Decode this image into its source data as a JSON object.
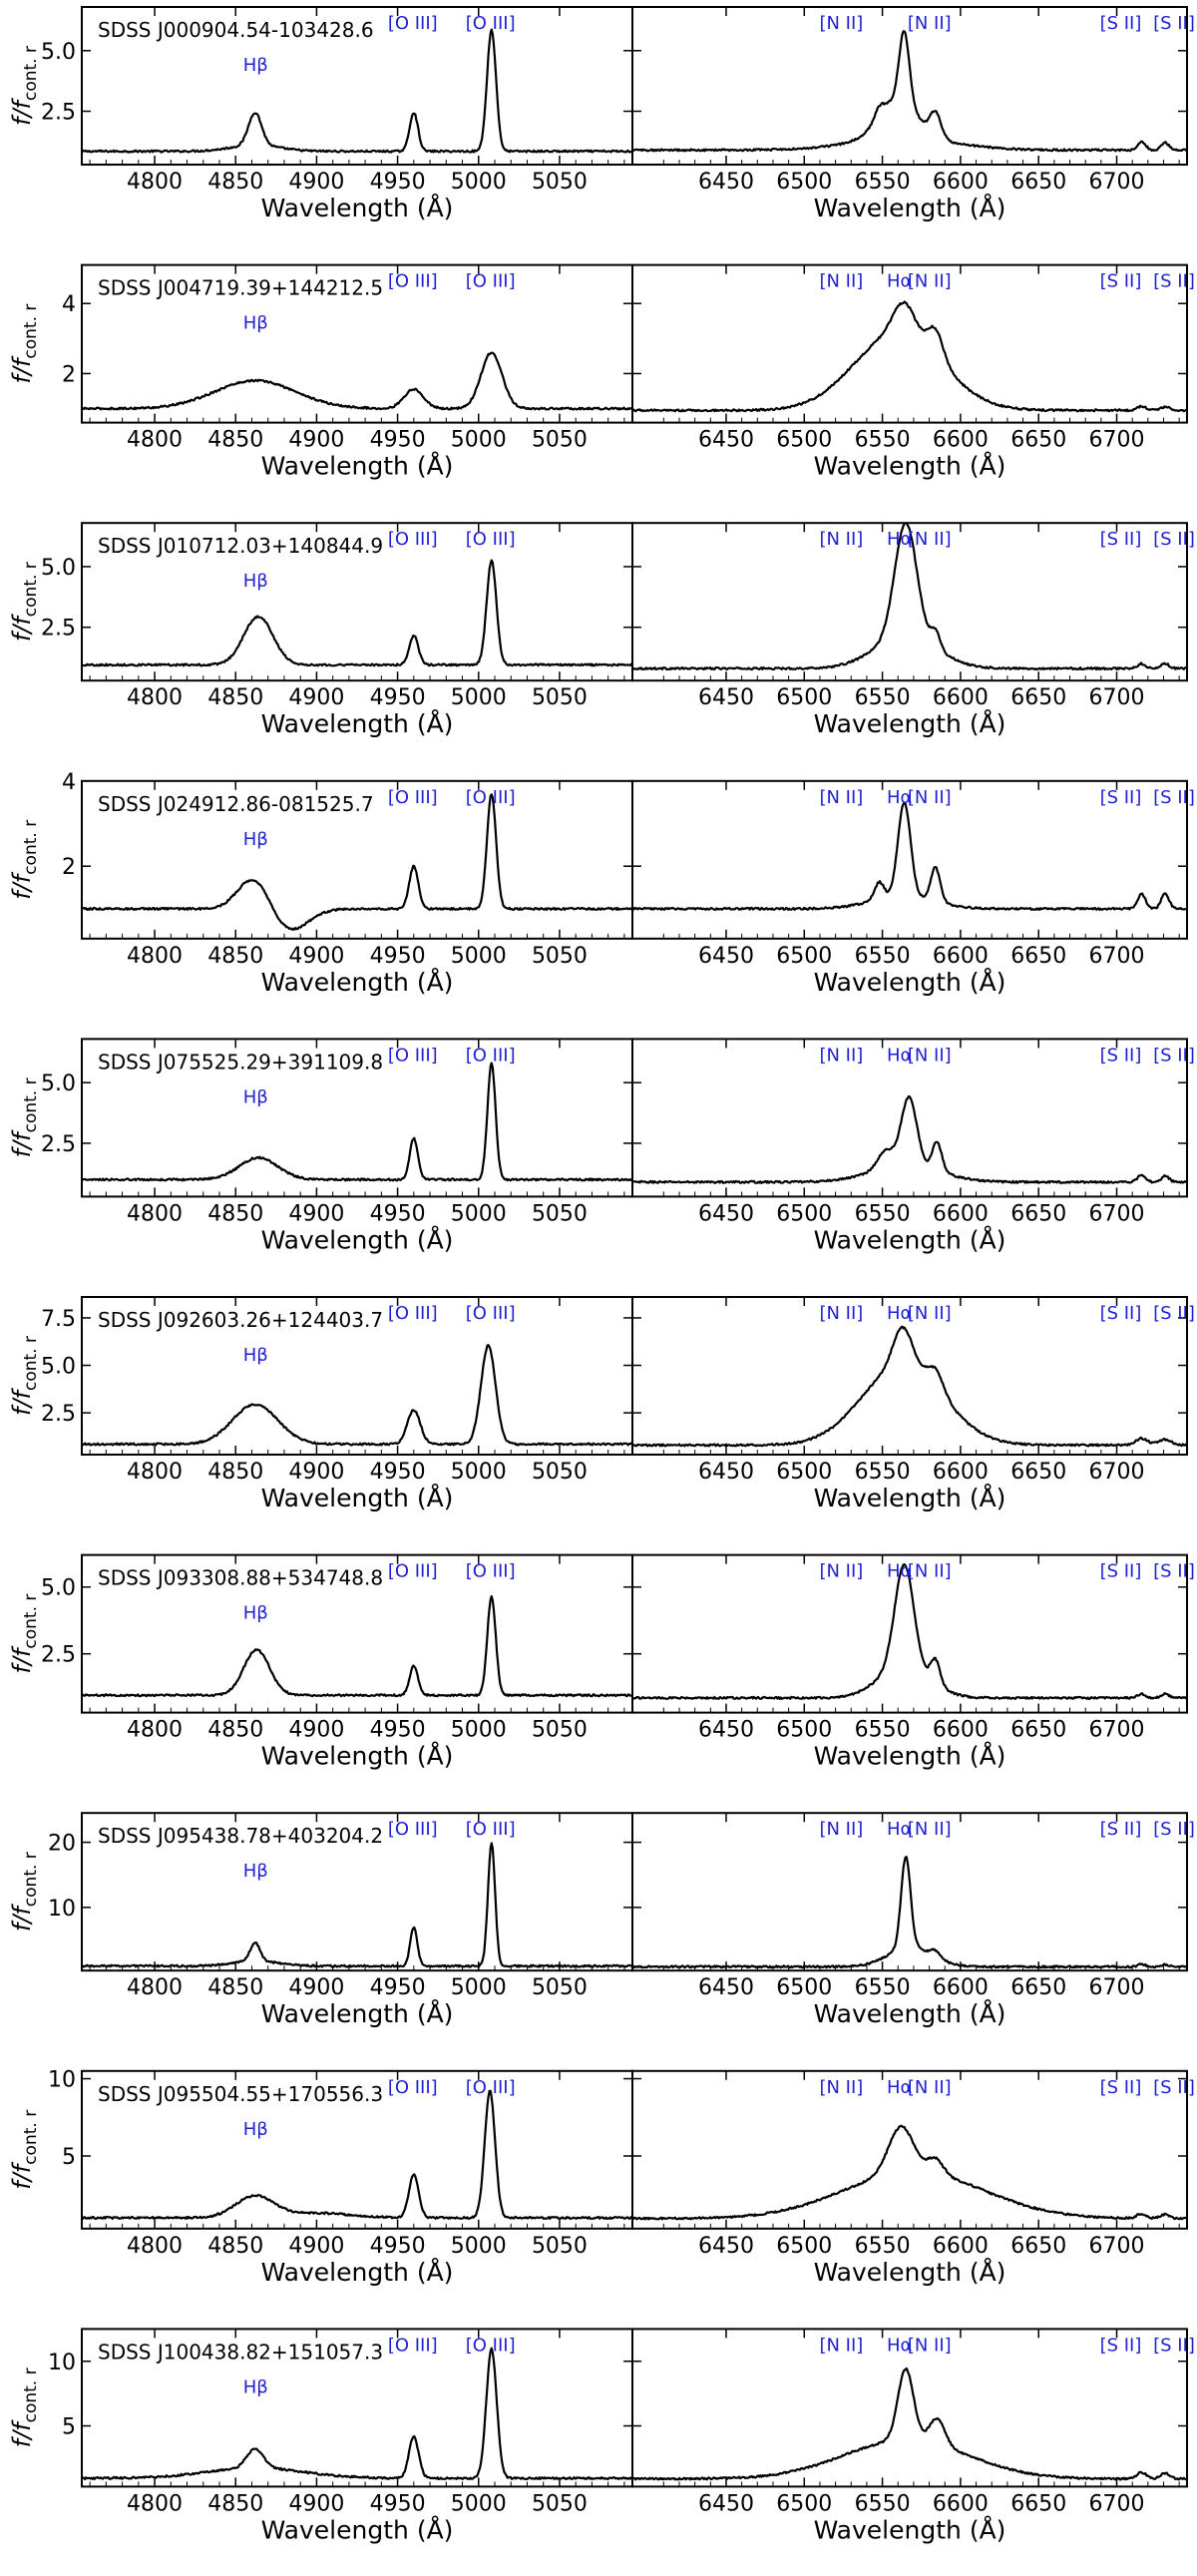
{
  "figure": {
    "x_label": "Wavelength (Å)",
    "y_label_main": "f/f",
    "y_label_sub": "cont. r",
    "line_color": "#1f1fd6",
    "spectrum_color": "#000000"
  },
  "chart_data": [
    {
      "type": "line",
      "title": "SDSS J000904.54-103428.6",
      "ylim": [
        0.3,
        6.8
      ],
      "yticks": [
        "2.5",
        "5.0"
      ],
      "ytick_values": [
        2.5,
        5.0
      ],
      "line_labels": {
        "Hbeta": "Hβ",
        "OIII_a": "[O III]",
        "OIII_b": "[O III]",
        "NII_a": "[N II]",
        "Halpha": "",
        "NII_b": "[N II]",
        "SII_a": "[S II]",
        "SII_b": "[S II]"
      },
      "left": {
        "xlim": [
          4755,
          5095
        ],
        "xticks": [
          4800,
          4850,
          4900,
          4950,
          5000,
          5050
        ],
        "baseline": 0.85,
        "features": [
          {
            "center": 4862,
            "sigma": 15,
            "amp": 0.25
          },
          {
            "center": 4862,
            "sigma": 4,
            "amp": 1.35
          },
          {
            "center": 4960,
            "sigma": 2.6,
            "amp": 1.6
          },
          {
            "center": 5008,
            "sigma": 2.8,
            "amp": 5.0
          }
        ]
      },
      "right": {
        "xlim": [
          6390,
          6745
        ],
        "xticks": [
          6450,
          6500,
          6550,
          6600,
          6650,
          6700
        ],
        "baseline": 0.9,
        "features": [
          {
            "center": 6563,
            "sigma": 32,
            "amp": 0.5
          },
          {
            "center": 6560,
            "sigma": 12,
            "amp": 1.6
          },
          {
            "center": 6564,
            "sigma": 3.2,
            "amp": 2.9
          },
          {
            "center": 6584,
            "sigma": 3.5,
            "amp": 1.0
          },
          {
            "center": 6548,
            "sigma": 3,
            "amp": 0.4
          },
          {
            "center": 6716,
            "sigma": 2.5,
            "amp": 0.35
          },
          {
            "center": 6731,
            "sigma": 2.5,
            "amp": 0.3
          }
        ]
      }
    },
    {
      "type": "line",
      "title": "SDSS J004719.39+144212.5",
      "ylim": [
        0.6,
        5.1
      ],
      "yticks": [
        "2",
        "4"
      ],
      "ytick_values": [
        2,
        4
      ],
      "line_labels": {
        "Hbeta": "Hβ",
        "OIII_a": "[O III]",
        "OIII_b": "[O III]",
        "NII_a": "[N II]",
        "Halpha": "Hα",
        "NII_b": "[N II]",
        "SII_a": "[S II]",
        "SII_b": "[S II]"
      },
      "left": {
        "xlim": [
          4755,
          5095
        ],
        "xticks": [
          4800,
          4850,
          4900,
          4950,
          5000,
          5050
        ],
        "baseline": 1.0,
        "features": [
          {
            "center": 4862,
            "sigma": 25,
            "amp": 0.8
          },
          {
            "center": 4960,
            "sigma": 6,
            "amp": 0.55
          },
          {
            "center": 5008,
            "sigma": 6.5,
            "amp": 1.6
          }
        ]
      },
      "right": {
        "xlim": [
          6390,
          6745
        ],
        "xticks": [
          6450,
          6500,
          6550,
          6600,
          6650,
          6700
        ],
        "baseline": 0.95,
        "features": [
          {
            "center": 6560,
            "sigma": 28,
            "amp": 2.2
          },
          {
            "center": 6564,
            "sigma": 7,
            "amp": 0.9
          },
          {
            "center": 6584,
            "sigma": 5,
            "amp": 0.8
          },
          {
            "center": 6716,
            "sigma": 3,
            "amp": 0.12
          },
          {
            "center": 6731,
            "sigma": 3,
            "amp": 0.1
          }
        ]
      }
    },
    {
      "type": "line",
      "title": "SDSS J010712.03+140844.9",
      "ylim": [
        0.3,
        6.8
      ],
      "yticks": [
        "2.5",
        "5.0"
      ],
      "ytick_values": [
        2.5,
        5.0
      ],
      "line_labels": {
        "Hbeta": "Hβ",
        "OIII_a": "[O III]",
        "OIII_b": "[O III]",
        "NII_a": "[N II]",
        "Halpha": "Hα",
        "NII_b": "[N II]",
        "SII_a": "[S II]",
        "SII_b": "[S II]"
      },
      "left": {
        "xlim": [
          4755,
          5095
        ],
        "xticks": [
          4800,
          4850,
          4900,
          4950,
          5000,
          5050
        ],
        "baseline": 0.95,
        "features": [
          {
            "center": 4864,
            "sigma": 9,
            "amp": 2.0
          },
          {
            "center": 4960,
            "sigma": 2.8,
            "amp": 1.2
          },
          {
            "center": 5008,
            "sigma": 3,
            "amp": 4.3
          }
        ]
      },
      "right": {
        "xlim": [
          6390,
          6745
        ],
        "xticks": [
          6450,
          6500,
          6550,
          6600,
          6650,
          6700
        ],
        "baseline": 0.8,
        "features": [
          {
            "center": 6565,
            "sigma": 20,
            "amp": 1.3
          },
          {
            "center": 6565,
            "sigma": 7,
            "amp": 4.7
          },
          {
            "center": 6584,
            "sigma": 3,
            "amp": 0.7
          },
          {
            "center": 6716,
            "sigma": 2.5,
            "amp": 0.2
          },
          {
            "center": 6731,
            "sigma": 2.5,
            "amp": 0.2
          }
        ]
      }
    },
    {
      "type": "line",
      "title": "SDSS J024912.86-081525.7",
      "ylim": [
        0.3,
        4.0
      ],
      "yticks": [
        "2",
        "4"
      ],
      "ytick_values": [
        2,
        4
      ],
      "line_labels": {
        "Hbeta": "Hβ",
        "OIII_a": "[O III]",
        "OIII_b": "[O III]",
        "NII_a": "[N II]",
        "Halpha": "Hα",
        "NII_b": "[N II]",
        "SII_a": "[S II]",
        "SII_b": "[S II]"
      },
      "left": {
        "xlim": [
          4755,
          5095
        ],
        "xticks": [
          4800,
          4850,
          4900,
          4950,
          5000,
          5050
        ],
        "baseline": 1.0,
        "features": [
          {
            "center": 4862,
            "sigma": 10,
            "amp": 0.8
          },
          {
            "center": 4882,
            "sigma": 12,
            "amp": -0.55
          },
          {
            "center": 4960,
            "sigma": 2.8,
            "amp": 1.0
          },
          {
            "center": 5008,
            "sigma": 2.8,
            "amp": 2.7
          }
        ]
      },
      "right": {
        "xlim": [
          6390,
          6745
        ],
        "xticks": [
          6450,
          6500,
          6550,
          6600,
          6650,
          6700
        ],
        "baseline": 1.0,
        "features": [
          {
            "center": 6563,
            "sigma": 20,
            "amp": 0.3
          },
          {
            "center": 6564,
            "sigma": 4,
            "amp": 2.2
          },
          {
            "center": 6548,
            "sigma": 3,
            "amp": 0.4
          },
          {
            "center": 6584,
            "sigma": 3,
            "amp": 0.8
          },
          {
            "center": 6716,
            "sigma": 2.5,
            "amp": 0.35
          },
          {
            "center": 6731,
            "sigma": 2.5,
            "amp": 0.35
          }
        ]
      }
    },
    {
      "type": "line",
      "title": "SDSS J075525.29+391109.8",
      "ylim": [
        0.3,
        6.8
      ],
      "yticks": [
        "2.5",
        "5.0"
      ],
      "ytick_values": [
        2.5,
        5.0
      ],
      "line_labels": {
        "Hbeta": "Hβ",
        "OIII_a": "[O III]",
        "OIII_b": "[O III]",
        "NII_a": "[N II]",
        "Halpha": "Hα",
        "NII_b": "[N II]",
        "SII_a": "[S II]",
        "SII_b": "[S II]"
      },
      "left": {
        "xlim": [
          4755,
          5095
        ],
        "xticks": [
          4800,
          4850,
          4900,
          4950,
          5000,
          5050
        ],
        "baseline": 1.0,
        "features": [
          {
            "center": 4864,
            "sigma": 12,
            "amp": 0.9
          },
          {
            "center": 4960,
            "sigma": 2.5,
            "amp": 1.7
          },
          {
            "center": 5008,
            "sigma": 2.5,
            "amp": 4.8
          }
        ]
      },
      "right": {
        "xlim": [
          6390,
          6745
        ],
        "xticks": [
          6450,
          6500,
          6550,
          6600,
          6650,
          6700
        ],
        "baseline": 0.9,
        "features": [
          {
            "center": 6565,
            "sigma": 22,
            "amp": 0.7
          },
          {
            "center": 6552,
            "sigma": 5,
            "amp": 0.7
          },
          {
            "center": 6567,
            "sigma": 5,
            "amp": 2.8
          },
          {
            "center": 6585,
            "sigma": 3,
            "amp": 1.2
          },
          {
            "center": 6716,
            "sigma": 2.5,
            "amp": 0.3
          },
          {
            "center": 6731,
            "sigma": 2.5,
            "amp": 0.25
          }
        ]
      }
    },
    {
      "type": "line",
      "title": "SDSS J092603.26+124403.7",
      "ylim": [
        0.3,
        8.6
      ],
      "yticks": [
        "2.5",
        "5.0",
        "7.5"
      ],
      "ytick_values": [
        2.5,
        5.0,
        7.5
      ],
      "line_labels": {
        "Hbeta": "Hβ",
        "OIII_a": "[O III]",
        "OIII_b": "[O III]",
        "NII_a": "[N II]",
        "Halpha": "Hα",
        "NII_b": "[N II]",
        "SII_a": "[S II]",
        "SII_b": "[S II]"
      },
      "left": {
        "xlim": [
          4755,
          5095
        ],
        "xticks": [
          4800,
          4850,
          4900,
          4950,
          5000,
          5050
        ],
        "baseline": 0.85,
        "features": [
          {
            "center": 4862,
            "sigma": 14,
            "amp": 2.1
          },
          {
            "center": 4960,
            "sigma": 4,
            "amp": 1.8
          },
          {
            "center": 5006,
            "sigma": 4.5,
            "amp": 5.2
          }
        ]
      },
      "right": {
        "xlim": [
          6390,
          6745
        ],
        "xticks": [
          6450,
          6500,
          6550,
          6600,
          6650,
          6700
        ],
        "baseline": 0.8,
        "features": [
          {
            "center": 6563,
            "sigma": 26,
            "amp": 4.2
          },
          {
            "center": 6563,
            "sigma": 6,
            "amp": 2.0
          },
          {
            "center": 6584,
            "sigma": 5,
            "amp": 1.0
          },
          {
            "center": 6716,
            "sigma": 4,
            "amp": 0.35
          },
          {
            "center": 6731,
            "sigma": 4,
            "amp": 0.3
          }
        ]
      }
    },
    {
      "type": "line",
      "title": "SDSS J093308.88+534748.8",
      "ylim": [
        0.3,
        6.2
      ],
      "yticks": [
        "2.5",
        "5.0"
      ],
      "ytick_values": [
        2.5,
        5.0
      ],
      "line_labels": {
        "Hbeta": "Hβ",
        "OIII_a": "[O III]",
        "OIII_b": "[O III]",
        "NII_a": "[N II]",
        "Halpha": "Hα",
        "NII_b": "[N II]",
        "SII_a": "[S II]",
        "SII_b": "[S II]"
      },
      "left": {
        "xlim": [
          4755,
          5095
        ],
        "xticks": [
          4800,
          4850,
          4900,
          4950,
          5000,
          5050
        ],
        "baseline": 0.95,
        "features": [
          {
            "center": 4863,
            "sigma": 8,
            "amp": 1.7
          },
          {
            "center": 4960,
            "sigma": 2.6,
            "amp": 1.1
          },
          {
            "center": 5008,
            "sigma": 2.6,
            "amp": 3.7
          }
        ]
      },
      "right": {
        "xlim": [
          6390,
          6745
        ],
        "xticks": [
          6450,
          6500,
          6550,
          6600,
          6650,
          6700
        ],
        "baseline": 0.85,
        "features": [
          {
            "center": 6564,
            "sigma": 16,
            "amp": 1.2
          },
          {
            "center": 6564,
            "sigma": 6,
            "amp": 3.8
          },
          {
            "center": 6584,
            "sigma": 3,
            "amp": 0.9
          },
          {
            "center": 6716,
            "sigma": 2.5,
            "amp": 0.15
          },
          {
            "center": 6731,
            "sigma": 2.5,
            "amp": 0.15
          }
        ]
      }
    },
    {
      "type": "line",
      "title": "SDSS J095438.78+403204.2",
      "ylim": [
        0.3,
        24.5
      ],
      "yticks": [
        "10",
        "20"
      ],
      "ytick_values": [
        10,
        20
      ],
      "line_labels": {
        "Hbeta": "Hβ",
        "OIII_a": "[O III]",
        "OIII_b": "[O III]",
        "NII_a": "[N II]",
        "Halpha": "Hα",
        "NII_b": "[N II]",
        "SII_a": "[S II]",
        "SII_b": "[S II]"
      },
      "left": {
        "xlim": [
          4755,
          5095
        ],
        "xticks": [
          4800,
          4850,
          4900,
          4950,
          5000,
          5050
        ],
        "baseline": 1.0,
        "features": [
          {
            "center": 4862,
            "sigma": 14,
            "amp": 0.8
          },
          {
            "center": 4862,
            "sigma": 3,
            "amp": 2.8
          },
          {
            "center": 4960,
            "sigma": 2.2,
            "amp": 6.0
          },
          {
            "center": 5008,
            "sigma": 2.2,
            "amp": 19.0
          }
        ]
      },
      "right": {
        "xlim": [
          6390,
          6745
        ],
        "xticks": [
          6450,
          6500,
          6550,
          6600,
          6650,
          6700
        ],
        "baseline": 0.9,
        "features": [
          {
            "center": 6568,
            "sigma": 14,
            "amp": 3.0
          },
          {
            "center": 6565,
            "sigma": 3,
            "amp": 14.0
          },
          {
            "center": 6584,
            "sigma": 3,
            "amp": 1.0
          },
          {
            "center": 6716,
            "sigma": 2.5,
            "amp": 0.4
          },
          {
            "center": 6731,
            "sigma": 2.5,
            "amp": 0.3
          }
        ]
      }
    },
    {
      "type": "line",
      "title": "SDSS J095504.55+170556.3",
      "ylim": [
        0.3,
        10.5
      ],
      "yticks": [
        "5",
        "10"
      ],
      "ytick_values": [
        5,
        10
      ],
      "line_labels": {
        "Hbeta": "Hβ",
        "OIII_a": "[O III]",
        "OIII_b": "[O III]",
        "NII_a": "[N II]",
        "Halpha": "Hα",
        "NII_b": "[N II]",
        "SII_a": "[S II]",
        "SII_b": "[S II]"
      },
      "left": {
        "xlim": [
          4755,
          5095
        ],
        "xticks": [
          4800,
          4850,
          4900,
          4950,
          5000,
          5050
        ],
        "baseline": 1.0,
        "features": [
          {
            "center": 4862,
            "sigma": 12,
            "amp": 1.4
          },
          {
            "center": 4902,
            "sigma": 20,
            "amp": 0.3
          },
          {
            "center": 4960,
            "sigma": 3,
            "amp": 2.8
          },
          {
            "center": 5007,
            "sigma": 3.2,
            "amp": 8.2
          }
        ]
      },
      "right": {
        "xlim": [
          6390,
          6745
        ],
        "xticks": [
          6450,
          6500,
          6550,
          6600,
          6650,
          6700
        ],
        "baseline": 0.95,
        "features": [
          {
            "center": 6570,
            "sigma": 45,
            "amp": 3.0
          },
          {
            "center": 6562,
            "sigma": 8,
            "amp": 3.0
          },
          {
            "center": 6584,
            "sigma": 5,
            "amp": 1.0
          },
          {
            "center": 6716,
            "sigma": 3,
            "amp": 0.3
          },
          {
            "center": 6731,
            "sigma": 3,
            "amp": 0.25
          }
        ]
      }
    },
    {
      "type": "line",
      "title": "SDSS J100438.82+151057.3",
      "ylim": [
        0.3,
        12.5
      ],
      "yticks": [
        "5",
        "10"
      ],
      "ytick_values": [
        5,
        10
      ],
      "line_labels": {
        "Hbeta": "Hβ",
        "OIII_a": "[O III]",
        "OIII_b": "[O III]",
        "NII_a": "[N II]",
        "Halpha": "Hα",
        "NII_b": "[N II]",
        "SII_a": "[S II]",
        "SII_b": "[S II]"
      },
      "left": {
        "xlim": [
          4755,
          5095
        ],
        "xticks": [
          4800,
          4850,
          4900,
          4950,
          5000,
          5050
        ],
        "baseline": 0.95,
        "features": [
          {
            "center": 4862,
            "sigma": 30,
            "amp": 0.8
          },
          {
            "center": 4862,
            "sigma": 5,
            "amp": 1.5
          },
          {
            "center": 4960,
            "sigma": 3,
            "amp": 3.2
          },
          {
            "center": 5008,
            "sigma": 3.2,
            "amp": 10.0
          }
        ]
      },
      "right": {
        "xlim": [
          6390,
          6745
        ],
        "xticks": [
          6450,
          6500,
          6550,
          6600,
          6650,
          6700
        ],
        "baseline": 0.9,
        "features": [
          {
            "center": 6565,
            "sigma": 40,
            "amp": 3.0
          },
          {
            "center": 6565,
            "sigma": 5,
            "amp": 5.5
          },
          {
            "center": 6585,
            "sigma": 5,
            "amp": 2.0
          },
          {
            "center": 6716,
            "sigma": 3,
            "amp": 0.5
          },
          {
            "center": 6731,
            "sigma": 3,
            "amp": 0.45
          }
        ]
      }
    }
  ]
}
